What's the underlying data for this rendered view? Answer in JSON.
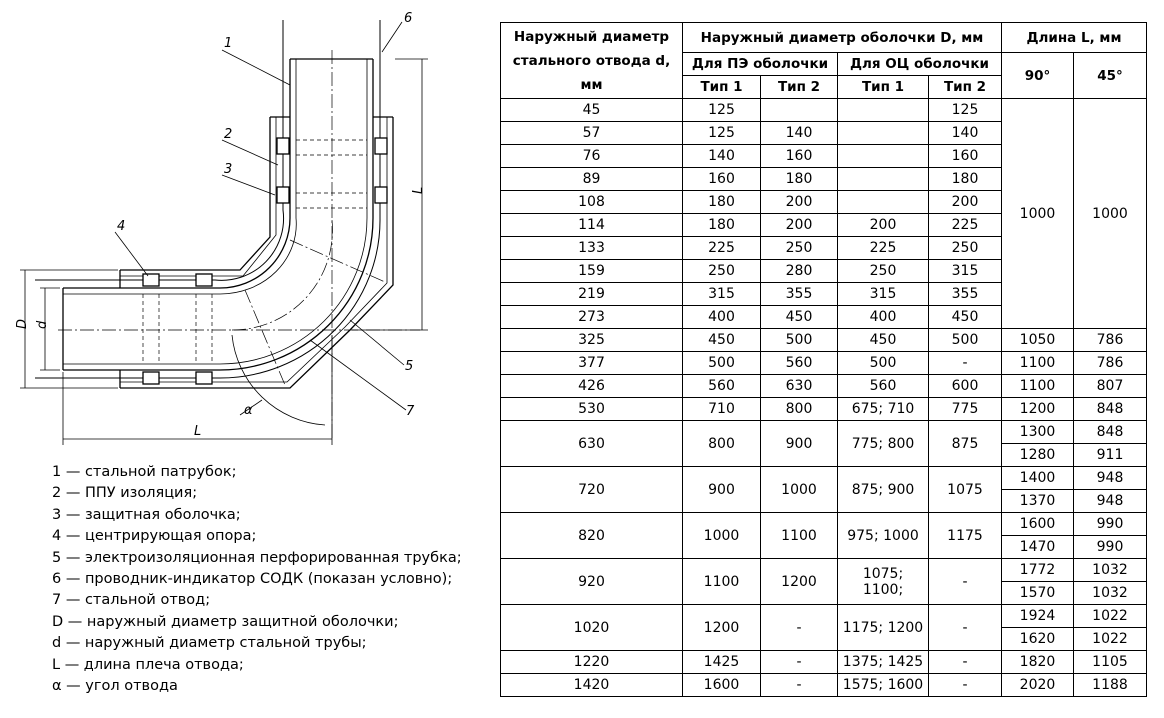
{
  "drawing": {
    "callouts": [
      "1",
      "2",
      "3",
      "4",
      "5",
      "6",
      "7"
    ],
    "dim_D": "D",
    "dim_d": "d",
    "dim_L_vertical": "L",
    "dim_L_horizontal": "L",
    "angle": "α"
  },
  "legend": [
    "1 — стальной патрубок;",
    "2 — ППУ изоляция;",
    "3 — защитная оболочка;",
    "4 — центрирующая опора;",
    "5 — электроизоляционная перфорированная трубка;",
    "6 — проводник-индикатор СОДК (показан условно);",
    "7 — стальной отвод;",
    "D — наружный диаметр защитной оболочки;",
    "d — наружный диаметр стальной трубы;",
    "L — длина плеча отвода;",
    "α — угол отвода"
  ],
  "table": {
    "headers": {
      "d": "Наружный диаметр стального отвода d, мм",
      "D": "Наружный диаметр оболочки D, мм",
      "L": "Длина L, мм",
      "pe": "Для ПЭ оболочки",
      "oc": "Для ОЦ оболочки",
      "type1": "Тип 1",
      "type2": "Тип 2",
      "deg90": "90°",
      "deg45": "45°"
    },
    "rows_small": [
      {
        "d": "45",
        "pe1": "125",
        "pe2": "",
        "oc1": "",
        "oc2": "125"
      },
      {
        "d": "57",
        "pe1": "125",
        "pe2": "140",
        "oc1": "",
        "oc2": "140"
      },
      {
        "d": "76",
        "pe1": "140",
        "pe2": "160",
        "oc1": "",
        "oc2": "160"
      },
      {
        "d": "89",
        "pe1": "160",
        "pe2": "180",
        "oc1": "",
        "oc2": "180"
      },
      {
        "d": "108",
        "pe1": "180",
        "pe2": "200",
        "oc1": "",
        "oc2": "200"
      },
      {
        "d": "114",
        "pe1": "180",
        "pe2": "200",
        "oc1": "200",
        "oc2": "225"
      },
      {
        "d": "133",
        "pe1": "225",
        "pe2": "250",
        "oc1": "225",
        "oc2": "250"
      },
      {
        "d": "159",
        "pe1": "250",
        "pe2": "280",
        "oc1": "250",
        "oc2": "315"
      },
      {
        "d": "219",
        "pe1": "315",
        "pe2": "355",
        "oc1": "315",
        "oc2": "355"
      },
      {
        "d": "273",
        "pe1": "400",
        "pe2": "450",
        "oc1": "400",
        "oc2": "450"
      }
    ],
    "small_L90": "1000",
    "small_L45": "1000",
    "rows_single": [
      {
        "d": "325",
        "pe1": "450",
        "pe2": "500",
        "oc1": "450",
        "oc2": "500",
        "l90": "1050",
        "l45": "786"
      },
      {
        "d": "377",
        "pe1": "500",
        "pe2": "560",
        "oc1": "500",
        "oc2": "-",
        "l90": "1100",
        "l45": "786"
      },
      {
        "d": "426",
        "pe1": "560",
        "pe2": "630",
        "oc1": "560",
        "oc2": "600",
        "l90": "1100",
        "l45": "807"
      },
      {
        "d": "530",
        "pe1": "710",
        "pe2": "800",
        "oc1": "675; 710",
        "oc2": "775",
        "l90": "1200",
        "l45": "848"
      }
    ],
    "rows_double": [
      {
        "d": "630",
        "pe1": "800",
        "pe2": "900",
        "oc1": "775; 800",
        "oc2": "875",
        "l90a": "1300",
        "l45a": "848",
        "l90b": "1280",
        "l45b": "911"
      },
      {
        "d": "720",
        "pe1": "900",
        "pe2": "1000",
        "oc1": "875; 900",
        "oc2": "1075",
        "l90a": "1400",
        "l45a": "948",
        "l90b": "1370",
        "l45b": "948"
      },
      {
        "d": "820",
        "pe1": "1000",
        "pe2": "1100",
        "oc1": "975; 1000",
        "oc2": "1175",
        "l90a": "1600",
        "l45a": "990",
        "l90b": "1470",
        "l45b": "990"
      },
      {
        "d": "920",
        "pe1": "1100",
        "pe2": "1200",
        "oc1": "1075;\n1100;",
        "oc2": "-",
        "l90a": "1772",
        "l45a": "1032",
        "l90b": "1570",
        "l45b": "1032"
      },
      {
        "d": "1020",
        "pe1": "1200",
        "pe2": "-",
        "oc1": "1175; 1200",
        "oc2": "-",
        "l90a": "1924",
        "l45a": "1022",
        "l90b": "1620",
        "l45b": "1022"
      }
    ],
    "rows_tail": [
      {
        "d": "1220",
        "pe1": "1425",
        "pe2": "-",
        "oc1": "1375; 1425",
        "oc2": "-",
        "l90": "1820",
        "l45": "1105"
      },
      {
        "d": "1420",
        "pe1": "1600",
        "pe2": "-",
        "oc1": "1575; 1600",
        "oc2": "-",
        "l90": "2020",
        "l45": "1188"
      }
    ]
  }
}
